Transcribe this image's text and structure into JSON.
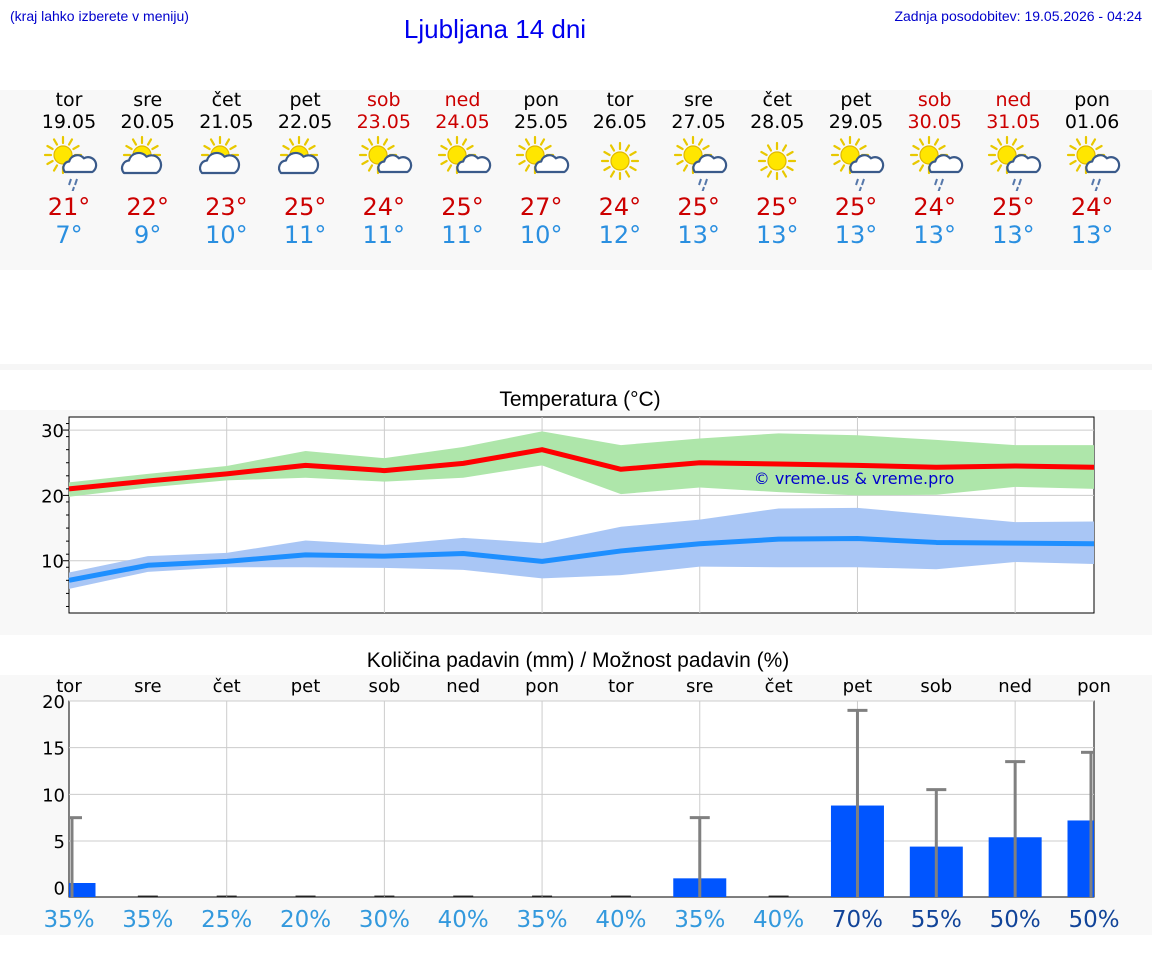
{
  "header": {
    "hint": "(kraj lahko izberete v meniju)",
    "title": "Ljubljana 14 dni",
    "update": "Zadnja posodobitev: 19.05.2026 - 04:24"
  },
  "days": [
    {
      "name": "tor",
      "date": "19.05",
      "weekend": false,
      "icon": "sun-cloud-rain-icon",
      "max": "21°",
      "min": "7°"
    },
    {
      "name": "sre",
      "date": "20.05",
      "weekend": false,
      "icon": "sun-cloud-icon",
      "max": "22°",
      "min": "9°"
    },
    {
      "name": "čet",
      "date": "21.05",
      "weekend": false,
      "icon": "sun-cloud-icon",
      "max": "23°",
      "min": "10°"
    },
    {
      "name": "pet",
      "date": "22.05",
      "weekend": false,
      "icon": "sun-cloud-icon",
      "max": "25°",
      "min": "11°"
    },
    {
      "name": "sob",
      "date": "23.05",
      "weekend": true,
      "icon": "sun-small-cloud-icon",
      "max": "24°",
      "min": "11°"
    },
    {
      "name": "ned",
      "date": "24.05",
      "weekend": true,
      "icon": "sun-small-cloud-icon",
      "max": "25°",
      "min": "11°"
    },
    {
      "name": "pon",
      "date": "25.05",
      "weekend": false,
      "icon": "sun-small-cloud-icon",
      "max": "27°",
      "min": "10°"
    },
    {
      "name": "tor",
      "date": "26.05",
      "weekend": false,
      "icon": "sun-icon",
      "max": "24°",
      "min": "12°"
    },
    {
      "name": "sre",
      "date": "27.05",
      "weekend": false,
      "icon": "sun-cloud-rain-icon",
      "max": "25°",
      "min": "13°"
    },
    {
      "name": "čet",
      "date": "28.05",
      "weekend": false,
      "icon": "sun-icon",
      "max": "25°",
      "min": "13°"
    },
    {
      "name": "pet",
      "date": "29.05",
      "weekend": false,
      "icon": "sun-cloud-rain-icon",
      "max": "25°",
      "min": "13°"
    },
    {
      "name": "sob",
      "date": "30.05",
      "weekend": true,
      "icon": "sun-cloud-rain-icon",
      "max": "24°",
      "min": "13°"
    },
    {
      "name": "ned",
      "date": "31.05",
      "weekend": true,
      "icon": "sun-cloud-rain-icon",
      "max": "25°",
      "min": "13°"
    },
    {
      "name": "pon",
      "date": "01.06",
      "weekend": false,
      "icon": "sun-cloud-rain-icon",
      "max": "24°",
      "min": "13°"
    }
  ],
  "colors": {
    "max_line": "#ff0000",
    "max_band": "#aee6aa",
    "min_line": "#1e8fff",
    "min_band": "#a9c6f5",
    "bar": "#0055ff",
    "whisker": "#808080",
    "pct_light": "#3399dd",
    "pct_dark": "#114499"
  },
  "chart_data": [
    {
      "type": "line",
      "title": "Temperatura (°C)",
      "watermark": "© vreme.us & vreme.pro",
      "x": [
        0,
        1,
        2,
        3,
        4,
        5,
        6,
        7,
        8,
        9,
        10,
        11,
        12,
        13
      ],
      "ylim": [
        2,
        32
      ],
      "yticks": [
        10,
        20,
        30
      ],
      "series": [
        {
          "values": [
            21,
            22.2,
            23.3,
            24.6,
            23.8,
            24.9,
            27,
            24,
            25,
            24.8,
            24.6,
            24.3,
            24.5,
            24.3
          ],
          "upper": [
            22,
            23.3,
            24.5,
            26.8,
            25.7,
            27.4,
            29.8,
            27.7,
            28.7,
            29.5,
            29.2,
            28.5,
            27.7,
            27.7
          ],
          "lower": [
            19.8,
            21.2,
            22.3,
            22.7,
            22.1,
            22.7,
            24.6,
            20.2,
            21.2,
            20.5,
            20,
            20.1,
            21.3,
            21
          ]
        },
        {
          "values": [
            7,
            9.3,
            9.9,
            10.9,
            10.7,
            11.1,
            9.9,
            11.5,
            12.6,
            13.3,
            13.4,
            12.8,
            12.7,
            12.6
          ],
          "upper": [
            8.2,
            10.7,
            11.2,
            13.1,
            12.4,
            13.5,
            12.7,
            15.2,
            16.3,
            18,
            18.1,
            17,
            15.9,
            16
          ],
          "lower": [
            5.7,
            8.3,
            9,
            9,
            8.9,
            8.6,
            7.3,
            7.8,
            9.1,
            9,
            9,
            8.7,
            9.8,
            9.5
          ]
        }
      ]
    },
    {
      "type": "bar",
      "title": "Količina padavin (mm) / Možnost padavin (%)",
      "categories": [
        "tor",
        "sre",
        "čet",
        "pet",
        "sob",
        "ned",
        "pon",
        "tor",
        "sre",
        "čet",
        "pet",
        "sob",
        "ned",
        "pon"
      ],
      "values": [
        0.5,
        0,
        0,
        0,
        0,
        0,
        0,
        0,
        1,
        0,
        8.8,
        4.4,
        5.4,
        7.2
      ],
      "whisker_high": [
        7.5,
        0,
        0,
        0,
        0,
        0,
        0,
        0,
        7.5,
        0,
        19,
        10.5,
        13.5,
        14.5
      ],
      "probability": [
        "35%",
        "35%",
        "25%",
        "20%",
        "30%",
        "40%",
        "35%",
        "40%",
        "35%",
        "40%",
        "70%",
        "55%",
        "50%",
        "50%"
      ],
      "ylim": [
        -1,
        20
      ],
      "yticks": [
        0,
        5,
        10,
        15,
        20
      ]
    }
  ]
}
